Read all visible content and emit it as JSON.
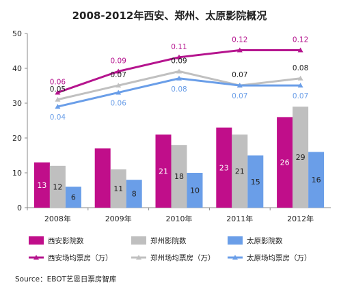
{
  "chart_data": {
    "type": "bar",
    "title": "2008-2012年西安、郑州、太原影院概况",
    "categories": [
      "2008年",
      "2009年",
      "2010年",
      "2011年",
      "2012年"
    ],
    "y_axis": {
      "ylim": [
        0,
        50
      ],
      "ticks": [
        "0",
        "10",
        "20",
        "30",
        "40",
        "50"
      ]
    },
    "series": [
      {
        "name": "西安影院数",
        "kind": "bar",
        "color": "#c00e8a",
        "values": [
          13,
          17,
          21,
          23,
          26
        ],
        "labels": [
          "13",
          "",
          "21",
          "23",
          "26"
        ]
      },
      {
        "name": "郑州影院数",
        "kind": "bar",
        "color": "#bfbfbf",
        "values": [
          12,
          11,
          18,
          21,
          29
        ],
        "labels": [
          "12",
          "11",
          "18",
          "21",
          "29"
        ]
      },
      {
        "name": "太原影院数",
        "kind": "bar",
        "color": "#6a9ee8",
        "values": [
          6,
          8,
          10,
          15,
          16
        ],
        "labels": [
          "6",
          "8",
          "10",
          "15",
          "16"
        ]
      },
      {
        "name": "西安场均票房（万）",
        "kind": "line",
        "color": "#b5148e",
        "values": [
          0.06,
          0.09,
          0.11,
          0.12,
          0.12
        ],
        "labels": [
          "0.06",
          "0.09",
          "0.11",
          "0.12",
          "0.12"
        ]
      },
      {
        "name": "郑州场均票房（万）",
        "kind": "line",
        "color": "#c0c0c0",
        "values": [
          0.05,
          0.07,
          0.09,
          0.07,
          0.08
        ],
        "labels": [
          "0.05",
          "0.07",
          "0.09",
          "0.07",
          "0.08"
        ]
      },
      {
        "name": "太原场均票房（万）",
        "kind": "line",
        "color": "#6a9ee8",
        "values": [
          0.04,
          0.06,
          0.08,
          0.07,
          0.07
        ],
        "labels": [
          "0.04",
          "0.06",
          "0.08",
          "0.07",
          "0.07"
        ]
      }
    ],
    "grid": false,
    "legend_position": "bottom"
  },
  "source": "Source：EBOT艺恩日票房智库"
}
